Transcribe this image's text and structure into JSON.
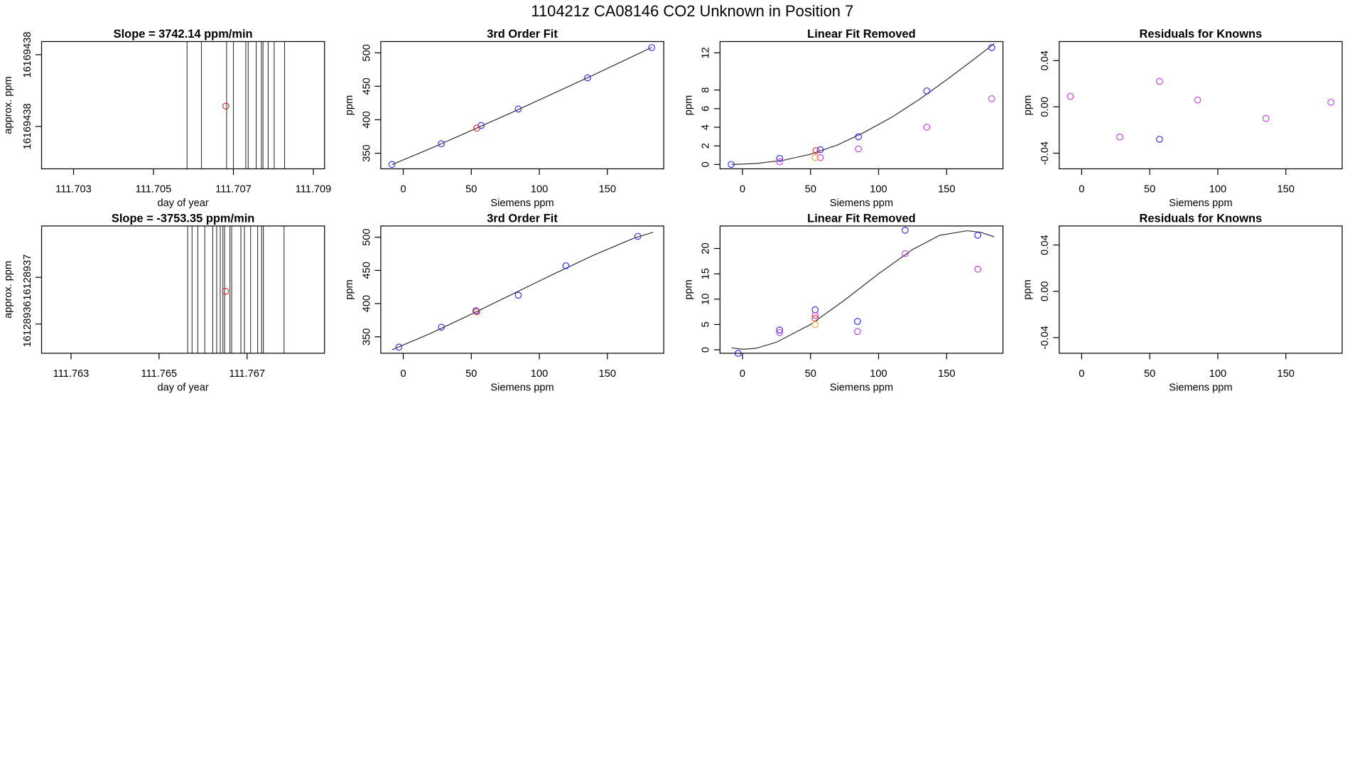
{
  "title": "110421z      CA08146    CO2 Unknown in Position  7",
  "chart_data": [
    {
      "type": "vlines",
      "title": "Slope =  3742.14  ppm/min",
      "xlabel": "day of year",
      "ylabel": "approx. ppm",
      "xlim": [
        111.7022,
        111.70928
      ],
      "ylim": [
        16169437.445,
        16169438.51
      ],
      "xticks": [
        111.703,
        111.705,
        111.707,
        111.709
      ],
      "yticks": [
        {
          "value": 16169437.8,
          "label": "16169438"
        },
        {
          "value": 16169438.4,
          "label": "16169438"
        }
      ],
      "vlines": [
        111.70584,
        111.7062,
        111.70683,
        111.707,
        111.70731,
        111.70737,
        111.70757,
        111.7077,
        111.70774,
        111.70787,
        111.70802,
        111.70828
      ],
      "line_color": "#333333",
      "x": [
        111.70681
      ],
      "values": [
        16169437.97
      ],
      "color": "#e03030"
    },
    {
      "type": "scatter",
      "title": "3rd Order Fit",
      "xlabel": "Siemens ppm",
      "ylabel": "ppm",
      "xlim": [
        -16.5,
        191.4
      ],
      "ylim": [
        326.7,
        516.8
      ],
      "xticks": [
        0,
        50,
        100,
        150
      ],
      "yticks": [
        350,
        400,
        450,
        500
      ],
      "x": [
        -8.3,
        28,
        57.2,
        84.5,
        135.4,
        182.5,
        54
      ],
      "values": [
        333.2,
        364.2,
        391.4,
        416,
        462.6,
        507.8,
        387.5
      ],
      "colors": [
        "#3333ff",
        "#3333ff",
        "#3333ff",
        "#3333ff",
        "#3333ff",
        "#3333ff",
        "#ee3333"
      ],
      "fit_x": [
        -8.3,
        20,
        50,
        80,
        110,
        140,
        170,
        182.5
      ],
      "fit_y": [
        333,
        357,
        384,
        411,
        439,
        467,
        496,
        508
      ]
    },
    {
      "type": "scatter",
      "title": "Linear Fit Removed",
      "xlabel": "Siemens ppm",
      "ylabel": "ppm",
      "xlim": [
        -16.5,
        191.4
      ],
      "ylim": [
        -0.47,
        13.21
      ],
      "xticks": [
        0,
        50,
        100,
        150
      ],
      "yticks": [
        0,
        2,
        4,
        6,
        8,
        12
      ],
      "x": [
        -8.3,
        27.3,
        57.2,
        85.2,
        135.4,
        183.1,
        27.3,
        57.2,
        85.2,
        135.4,
        183.1,
        54,
        53.4
      ],
      "values": [
        0,
        0.65,
        1.58,
        2.98,
        7.9,
        12.56,
        0.28,
        0.74,
        1.67,
        4.0,
        7.07,
        1.49,
        0.74
      ],
      "colors": [
        "#3333ff",
        "#3333ff",
        "#3333ff",
        "#3333ff",
        "#3333ff",
        "#3333ff",
        "#cc44ee",
        "#cc44ee",
        "#cc44ee",
        "#cc44ee",
        "#cc44ee",
        "#ee3333",
        "#ffaa33"
      ],
      "fit_x": [
        -8,
        10,
        30,
        50,
        70,
        90,
        110,
        130,
        150,
        170,
        185
      ],
      "fit_y": [
        0,
        0.1,
        0.45,
        1.1,
        2.1,
        3.5,
        5.1,
        7.0,
        9.1,
        11.3,
        13.0
      ]
    },
    {
      "type": "scatter",
      "title": "Residuals for Knowns",
      "xlabel": "Siemens ppm",
      "ylabel": "ppm",
      "xlim": [
        -16.5,
        191.4
      ],
      "ylim": [
        -0.0535,
        0.0564
      ],
      "xticks": [
        0,
        50,
        100,
        150
      ],
      "yticks": [
        -0.04,
        {
          "value": 0,
          "label": "0.00"
        },
        0.04
      ],
      "x": [
        -8.3,
        28,
        57.2,
        85.2,
        135.4,
        183.1,
        57.2
      ],
      "values": [
        0.009,
        -0.026,
        0.022,
        0.006,
        -0.01,
        0.004,
        -0.028
      ],
      "colors": [
        "#cc44ee",
        "#cc44ee",
        "#cc44ee",
        "#cc44ee",
        "#cc44ee",
        "#cc44ee",
        "#3333ff"
      ]
    },
    {
      "type": "vlines",
      "title": "Slope =  -3753.35  ppm/min",
      "xlabel": "day of year",
      "ylabel": "approx. ppm",
      "xlim": [
        111.76233,
        111.76876
      ],
      "ylim": [
        16128936.15,
        16128937.24
      ],
      "xticks": [
        111.763,
        111.765,
        111.767
      ],
      "yticks": [
        {
          "value": 16128936.4,
          "label": "16128936"
        },
        {
          "value": 16128936.8,
          "label": "16128937"
        }
      ],
      "vlines": [
        111.76565,
        111.76575,
        111.76588,
        111.76604,
        111.76622,
        111.76631,
        111.76639,
        111.76645,
        111.76649,
        111.76661,
        111.76665,
        111.76686,
        111.76694,
        111.76708,
        111.76724,
        111.76733,
        111.76737,
        111.76784
      ],
      "line_color": "#333333",
      "x": [
        111.76651
      ],
      "values": [
        16128936.68
      ],
      "color": "#e03030"
    },
    {
      "type": "scatter",
      "title": "3rd Order Fit",
      "xlabel": "Siemens ppm",
      "ylabel": "ppm",
      "xlim": [
        -16.5,
        191.4
      ],
      "ylim": [
        325.2,
        516.9
      ],
      "xticks": [
        0,
        50,
        100,
        150
      ],
      "yticks": [
        350,
        400,
        450,
        500
      ],
      "x": [
        -3.2,
        28,
        53.4,
        84.5,
        119.5,
        172.3,
        54
      ],
      "values": [
        334.4,
        364.4,
        389.2,
        412.6,
        457,
        501.3,
        388
      ],
      "colors": [
        "#3333ff",
        "#3333ff",
        "#3333ff",
        "#3333ff",
        "#3333ff",
        "#3333ff",
        "#ee3333"
      ],
      "fit_x": [
        -8.3,
        20,
        50,
        80,
        110,
        140,
        170,
        183.7
      ],
      "fit_y": [
        330.4,
        355,
        384,
        414,
        444,
        473,
        499,
        507.5
      ]
    },
    {
      "type": "scatter",
      "title": "Linear Fit Removed",
      "xlabel": "Siemens ppm",
      "ylabel": "ppm",
      "xlim": [
        -16.5,
        191.4
      ],
      "ylim": [
        -0.68,
        24.44
      ],
      "xticks": [
        0,
        50,
        100,
        150
      ],
      "yticks": [
        0,
        5,
        10,
        15,
        20
      ],
      "x": [
        -3.2,
        27.3,
        53.4,
        84.5,
        119.5,
        172.9,
        27.3,
        53.4,
        84.5,
        119.5,
        172.9,
        53.4,
        53.4
      ],
      "values": [
        -0.7,
        3.9,
        7.9,
        5.6,
        23.6,
        22.6,
        3.4,
        6.8,
        3.6,
        19.0,
        15.9,
        6.2,
        5.0
      ],
      "colors": [
        "#3333ff",
        "#3333ff",
        "#3333ff",
        "#3333ff",
        "#3333ff",
        "#3333ff",
        "#cc44ee",
        "#cc44ee",
        "#cc44ee",
        "#cc44ee",
        "#cc44ee",
        "#ee3333",
        "#ffaa33"
      ],
      "fit_x": [
        -8,
        0,
        10,
        25,
        50,
        75,
        100,
        125,
        145,
        165,
        175,
        185
      ],
      "fit_y": [
        0.4,
        0.1,
        0.3,
        1.5,
        5,
        9.8,
        15,
        19.8,
        22.6,
        23.5,
        23.2,
        22.3
      ]
    },
    {
      "type": "scatter",
      "title": "Residuals for Knowns",
      "xlabel": "Siemens ppm",
      "ylabel": "ppm",
      "xlim": [
        -16.5,
        191.4
      ],
      "ylim": [
        -0.0535,
        0.0564
      ],
      "xticks": [
        0,
        50,
        100,
        150
      ],
      "yticks": [
        -0.04,
        {
          "value": 0,
          "label": "0.00"
        },
        0.04
      ],
      "x": [],
      "values": [],
      "colors": []
    }
  ]
}
